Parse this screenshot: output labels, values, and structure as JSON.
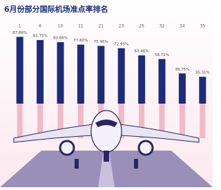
{
  "chart_data": {
    "type": "bar",
    "title": "6月份部分国际机场准点率排名",
    "categories": [
      "1",
      "6",
      "10",
      "11",
      "21",
      "23",
      "25",
      "32",
      "34",
      "35"
    ],
    "values": [
      87.86,
      83.75,
      80.86,
      77.6,
      75.95,
      72.95,
      63.46,
      58.71,
      39.75,
      35.31
    ],
    "value_labels": [
      "87.86%",
      "83.75%",
      "80.86%",
      "77.60%",
      "75.95%",
      "72.95%",
      "63.46%",
      "58.71%",
      "39.75%",
      "35.31%"
    ],
    "color": "#1d2b7a"
  }
}
